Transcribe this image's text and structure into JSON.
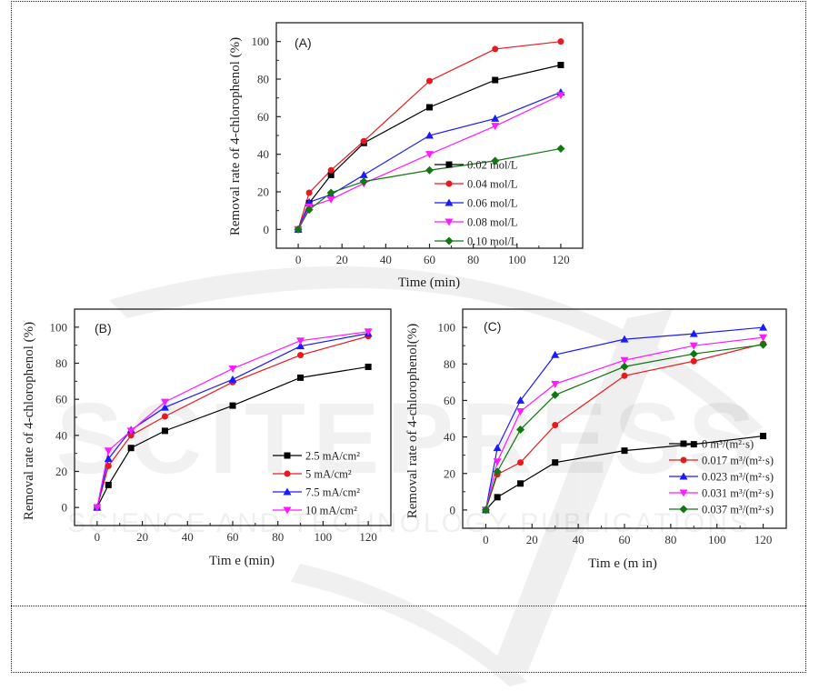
{
  "watermark": {
    "lines": [
      "SCITEPRESS",
      "SCIENCE AND TECHNOLOGY PUBLICATIONS"
    ]
  },
  "chart_data": [
    {
      "type": "line",
      "panel_label": "(A)",
      "xlabel": "Time (min)",
      "ylabel": "Removal rate of 4-chlorophenol (%)",
      "xlim": [
        -10,
        130
      ],
      "ylim": [
        -10,
        110
      ],
      "xticks": [
        0,
        20,
        40,
        60,
        80,
        100,
        120
      ],
      "yticks": [
        0,
        20,
        40,
        60,
        80,
        100
      ],
      "grid": false,
      "legend_position": "bottom-right",
      "x": [
        0,
        5,
        15,
        30,
        60,
        90,
        120
      ],
      "series": [
        {
          "name": "0.02 mol/L",
          "color": "#000000",
          "marker": "square",
          "values": [
            0,
            14,
            29,
            46,
            65,
            79.5,
            87.5
          ]
        },
        {
          "name": "0.04 mol/L",
          "color": "#e8191c",
          "marker": "circle",
          "values": [
            0,
            19.5,
            31.5,
            47,
            79,
            96,
            100
          ]
        },
        {
          "name": "0.06 mol/L",
          "color": "#1a1aff",
          "marker": "triangle-up",
          "values": [
            0,
            14.5,
            18.5,
            29,
            50,
            59,
            73
          ]
        },
        {
          "name": "0.08 mol/L",
          "color": "#ff1aff",
          "marker": "triangle-down",
          "values": [
            0,
            12,
            16,
            24.5,
            40,
            55,
            71.5
          ]
        },
        {
          "name": "0.10 mol/L",
          "color": "#117711",
          "marker": "diamond",
          "values": [
            0,
            10.5,
            19.5,
            25.5,
            31.5,
            36.5,
            43
          ]
        }
      ]
    },
    {
      "type": "line",
      "panel_label": "(B)",
      "xlabel": "Tim e (min)",
      "ylabel": "Removal rate of 4-chlorophenol (%)",
      "xlim": [
        -10,
        130
      ],
      "ylim": [
        -10,
        110
      ],
      "xticks": [
        0,
        20,
        40,
        60,
        80,
        100,
        120
      ],
      "yticks": [
        0,
        20,
        40,
        60,
        80,
        100
      ],
      "grid": false,
      "legend_position": "bottom-right",
      "x": [
        0,
        5,
        15,
        30,
        60,
        90,
        120
      ],
      "series": [
        {
          "name": "2.5 mA/cm²",
          "color": "#000000",
          "marker": "square",
          "values": [
            0,
            12.5,
            33,
            42.5,
            56.5,
            72,
            78
          ]
        },
        {
          "name": "5 mA/cm²",
          "color": "#e8191c",
          "marker": "circle",
          "values": [
            0,
            23,
            40,
            50.5,
            69.5,
            84.5,
            95
          ]
        },
        {
          "name": "7.5 mA/cm²",
          "color": "#1a1aff",
          "marker": "triangle-up",
          "values": [
            0,
            27,
            43,
            55.5,
            71,
            89.5,
            96.5
          ]
        },
        {
          "name": "10 mA/cm²",
          "color": "#ff1aff",
          "marker": "triangle-down",
          "values": [
            0,
            31.5,
            42.5,
            58.5,
            77,
            92.5,
            97.5
          ]
        }
      ]
    },
    {
      "type": "line",
      "panel_label": "(C)",
      "xlabel": "Tim e (m in)",
      "ylabel": "Removal rate of 4-chlorophenol(%)",
      "xlim": [
        -10,
        130
      ],
      "ylim": [
        -10,
        110
      ],
      "xticks": [
        0,
        20,
        40,
        60,
        80,
        100,
        120
      ],
      "yticks": [
        0,
        20,
        40,
        60,
        80,
        100
      ],
      "grid": false,
      "legend_position": "bottom-right",
      "x": [
        0,
        5,
        15,
        30,
        60,
        90,
        120
      ],
      "series": [
        {
          "name": "0 m³/(m²·s)",
          "color": "#000000",
          "marker": "square",
          "values": [
            0,
            7,
            14.5,
            26,
            32.5,
            36,
            40.5
          ]
        },
        {
          "name": "0.017 m³/(m²·s)",
          "color": "#e8191c",
          "marker": "circle",
          "values": [
            0,
            19.5,
            26,
            46.5,
            73.5,
            81.5,
            91
          ]
        },
        {
          "name": "0.023 m³/(m²·s)",
          "color": "#1a1aff",
          "marker": "triangle-up",
          "values": [
            0,
            34,
            60,
            85,
            93.5,
            96.5,
            100
          ]
        },
        {
          "name": "0.031 m³/(m²·s)",
          "color": "#ff1aff",
          "marker": "triangle-down",
          "values": [
            0,
            26.5,
            54,
            69,
            82,
            90,
            94.5
          ]
        },
        {
          "name": "0.037 m³/(m²·s)",
          "color": "#117711",
          "marker": "diamond",
          "values": [
            0,
            21,
            44,
            63,
            78.5,
            85.5,
            90.5
          ]
        }
      ]
    }
  ]
}
